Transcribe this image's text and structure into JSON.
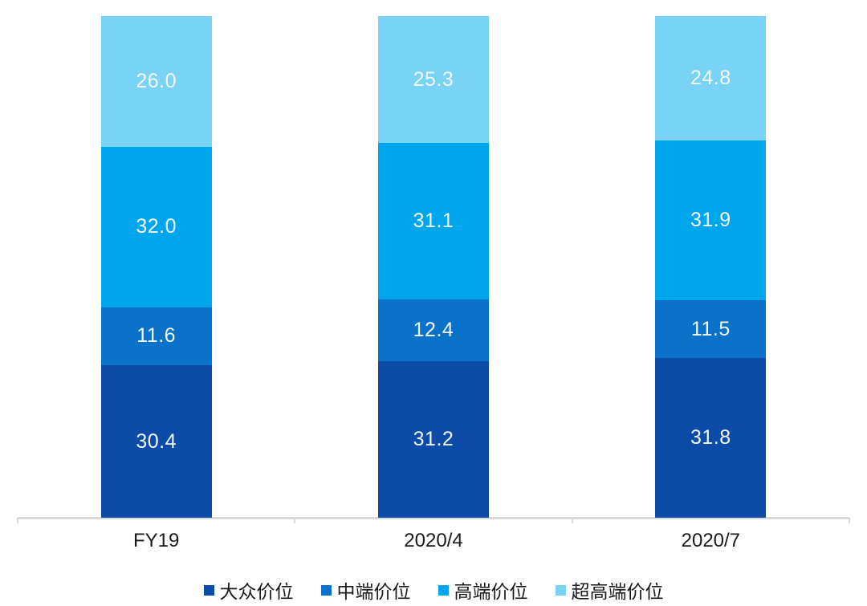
{
  "chart_data": {
    "type": "bar",
    "stacked": true,
    "orientation": "vertical",
    "categories": [
      "FY19",
      "2020/4",
      "2020/7"
    ],
    "series": [
      {
        "name": "大众价位",
        "color": "#0c4ba8",
        "values": [
          30.4,
          31.2,
          31.8
        ]
      },
      {
        "name": "中端价位",
        "color": "#0a72c8",
        "values": [
          11.6,
          12.4,
          11.5
        ]
      },
      {
        "name": "高端价位",
        "color": "#00a6ec",
        "values": [
          32.0,
          31.1,
          31.9
        ]
      },
      {
        "name": "超高端价位",
        "color": "#79d3f5",
        "values": [
          26.0,
          25.3,
          24.8
        ]
      }
    ],
    "value_labels": [
      "30.4",
      "11.6",
      "32.0",
      "26.0",
      "31.2",
      "12.4",
      "31.1",
      "25.3",
      "31.8",
      "11.5",
      "31.9",
      "24.8"
    ],
    "title": "",
    "xlabel": "",
    "ylabel": "",
    "ylim": [
      0,
      100
    ],
    "grid": false,
    "legend_position": "bottom",
    "value_label_color": "#f4fafd",
    "axis_color": "#d9d9d9",
    "text_color": "#1a1a1a"
  }
}
